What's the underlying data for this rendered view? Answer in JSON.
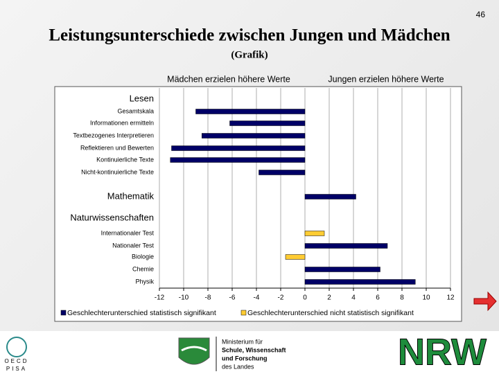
{
  "page_number": "46",
  "title": "Leistungsunterschiede zwischen Jungen und Mädchen",
  "subtitle": "(Grafik)",
  "chart_data": {
    "type": "bar",
    "orientation": "horizontal",
    "left_header": "Mädchen erzielen höhere Werte",
    "right_header": "Jungen erzielen höhere Werte",
    "categories": [
      "Lesen",
      "Gesamtskala",
      "Informationen ermitteln",
      "Textbezogenes Interpretieren",
      "Reflektieren und Bewerten",
      "Kontinuierliche Texte",
      "Nicht-kontinuierliche Texte",
      "Mathematik",
      "Naturwissenschaften",
      "Internationaler Test",
      "Nationaler Test",
      "Biologie",
      "Chemie",
      "Physik"
    ],
    "category_levels": [
      1,
      2,
      2,
      2,
      2,
      2,
      2,
      1,
      1,
      2,
      2,
      2,
      2,
      2
    ],
    "series": [
      {
        "name": "Geschlechterunterschied statistisch signifikant",
        "color": "#000066",
        "values": [
          null,
          -9,
          -6.2,
          -8.5,
          -11,
          -11.1,
          -3.8,
          4.2,
          null,
          null,
          6.8,
          null,
          6.2,
          9.1
        ]
      },
      {
        "name": "Geschlechterunterschied nicht statistisch signifikant",
        "color": "#ffcc33",
        "values": [
          null,
          null,
          null,
          null,
          null,
          null,
          null,
          null,
          null,
          1.6,
          null,
          -1.6,
          null,
          null
        ]
      }
    ],
    "xlim": [
      -12,
      12
    ],
    "xticks": [
      -12,
      -10,
      -8,
      -6,
      -4,
      -2,
      0,
      2,
      4,
      6,
      8,
      10,
      12
    ],
    "grid": true,
    "legend": "bottom"
  },
  "footer": {
    "oecd": "OECD",
    "pisa": "PISA",
    "ministry": [
      "Ministerium für",
      "Schule, Wissenschaft",
      "und Forschung",
      "des Landes"
    ],
    "nrw": "NRW"
  }
}
